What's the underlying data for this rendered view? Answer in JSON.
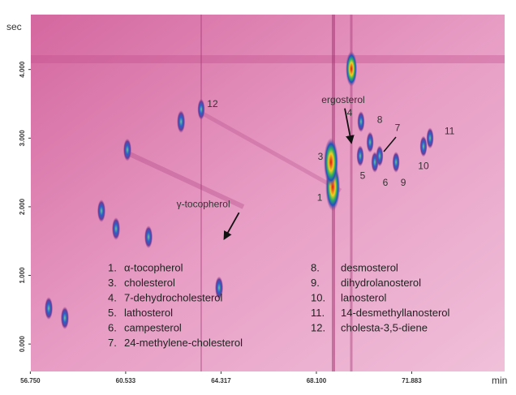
{
  "chart_data": {
    "type": "contour",
    "y_label": "sec",
    "x_label": "min",
    "xlim": [
      56.77,
      75.57
    ],
    "ylim": [
      -0.4,
      4.8
    ],
    "xticks": [
      {
        "value": 56.75,
        "label": "56.750"
      },
      {
        "value": 60.533,
        "label": "60.533"
      },
      {
        "value": 64.317,
        "label": "64.317"
      },
      {
        "value": 68.1,
        "label": "68.100"
      },
      {
        "value": 71.883,
        "label": "71.883"
      }
    ],
    "yticks": [
      {
        "value": 0,
        "label": "0.000"
      },
      {
        "value": 1,
        "label": "1.000"
      },
      {
        "value": 2,
        "label": "2.000"
      },
      {
        "value": 3,
        "label": "3.000"
      },
      {
        "value": 4,
        "label": "4.000"
      }
    ],
    "peaks": [
      {
        "label": "1",
        "x": 68.75,
        "y": 2.29
      },
      {
        "label": "3",
        "x": 68.68,
        "y": 2.65
      },
      {
        "label": "4",
        "x": 69.87,
        "y": 3.24
      },
      {
        "label": "5",
        "x": 69.84,
        "y": 2.74
      },
      {
        "label": "6",
        "x": 70.42,
        "y": 2.65
      },
      {
        "label": "7",
        "x": 70.61,
        "y": 2.74
      },
      {
        "label": "8",
        "x": 70.23,
        "y": 2.94
      },
      {
        "label": "9",
        "x": 71.26,
        "y": 2.65
      },
      {
        "label": "10",
        "x": 72.35,
        "y": 2.88
      },
      {
        "label": "11",
        "x": 72.61,
        "y": 3.0
      },
      {
        "label": "12",
        "x": 63.53,
        "y": 3.42
      }
    ],
    "spots": [
      {
        "x": 69.49,
        "y": 4.01
      },
      {
        "x": 60.6,
        "y": 2.83
      },
      {
        "x": 61.44,
        "y": 1.56
      },
      {
        "x": 60.15,
        "y": 1.68
      },
      {
        "x": 57.48,
        "y": 0.52
      },
      {
        "x": 58.12,
        "y": 0.38
      },
      {
        "x": 62.73,
        "y": 3.24
      },
      {
        "x": 59.57,
        "y": 1.94
      },
      {
        "x": 64.24,
        "y": 0.82
      }
    ],
    "annotations": [
      {
        "text": "ergosterol",
        "x": 69.55,
        "y": 2.89
      },
      {
        "text": "γ-tocopherol",
        "x": 64.58,
        "y": 1.56
      }
    ],
    "legend": [
      {
        "number": "1.",
        "name": "α-tocopherol"
      },
      {
        "number": "3.",
        "name": "cholesterol"
      },
      {
        "number": "4.",
        "name": "7-dehydrocholesterol"
      },
      {
        "number": "5.",
        "name": "lathosterol"
      },
      {
        "number": "6.",
        "name": "campesterol"
      },
      {
        "number": "7.",
        "name": "24-methylene-cholesterol"
      },
      {
        "number": "8.",
        "name": "desmosterol"
      },
      {
        "number": "9.",
        "name": "dihydrolanosterol"
      },
      {
        "number": "10.",
        "name": "lanosterol"
      },
      {
        "number": "11.",
        "name": "14-desmethyllanosterol"
      },
      {
        "number": "12.",
        "name": "cholesta-3,5-diene"
      }
    ]
  }
}
